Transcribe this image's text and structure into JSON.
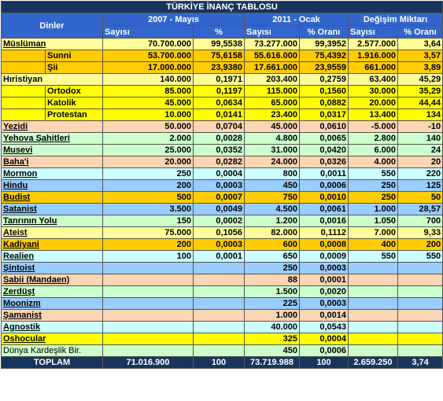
{
  "title": "TÜRKİYE İNANÇ TABLOSU",
  "header": {
    "first": "Dinler",
    "groups": [
      "2007 - Mayıs",
      "2011 - Ocak",
      "Değişim Miktarı"
    ],
    "columns": [
      "Sayısı",
      "%",
      "Sayısı",
      "% Oranı",
      "Sayısı",
      "% Oranı"
    ]
  },
  "rows": [
    {
      "name": "Müslüman",
      "values": [
        "70.700.000",
        "99,5538",
        "73.277.000",
        "99,3952",
        "2.577.000",
        "3,64"
      ],
      "color": "#ffff99",
      "link": true
    },
    {
      "name": "Sunni",
      "values": [
        "53.700.000",
        "75,6158",
        "55.616.000",
        "75,4392",
        "1.916.000",
        "3,57"
      ],
      "color": "#ffcc00",
      "indent": true
    },
    {
      "name": "Şii",
      "values": [
        "17.000.000",
        "23,9380",
        "17.661.000",
        "23,9559",
        "661.000",
        "3,89"
      ],
      "color": "#ffcc00",
      "indent": true
    },
    {
      "name": "Hıristiyan",
      "values": [
        "140.000",
        "0,1971",
        "203.400",
        "0,2759",
        "63.400",
        "45,29"
      ],
      "color": "#ffff99"
    },
    {
      "name": "Ortodox",
      "values": [
        "85.000",
        "0,1197",
        "115.000",
        "0,1560",
        "30.000",
        "35,29"
      ],
      "color": "#ffff00",
      "indent": true
    },
    {
      "name": "Katolik",
      "values": [
        "45.000",
        "0,0634",
        "65.000",
        "0,0882",
        "20.000",
        "44,44"
      ],
      "color": "#ffff00",
      "indent": true
    },
    {
      "name": "Protestan",
      "values": [
        "10.000",
        "0,0141",
        "23.400",
        "0,0317",
        "13.400",
        "134"
      ],
      "color": "#ffff00",
      "indent": true
    },
    {
      "name": "Yezidi",
      "values": [
        "50.000",
        "0,0704",
        "45.000",
        "0,0610",
        "-5.000",
        "-10"
      ],
      "color": "#fcd5b4",
      "link": true
    },
    {
      "name": "Yehova Şahitleri",
      "values": [
        "2.000",
        "0,0028",
        "4.800",
        "0,0065",
        "2.800",
        "140"
      ],
      "color": "#ccffcc",
      "link": true
    },
    {
      "name": "Musevi",
      "values": [
        "25.000",
        "0,0352",
        "31.000",
        "0,0420",
        "6.000",
        "24"
      ],
      "color": "#ccffcc",
      "link": true
    },
    {
      "name": "Baha'i",
      "values": [
        "20.000",
        "0,0282",
        "24.000",
        "0,0326",
        "4.000",
        "20"
      ],
      "color": "#fcd5b4",
      "link": true
    },
    {
      "name": "Mormon",
      "values": [
        "250",
        "0,0004",
        "800",
        "0,0011",
        "550",
        "220"
      ],
      "color": "#ccffff",
      "link": true
    },
    {
      "name": "Hindu",
      "values": [
        "200",
        "0,0003",
        "450",
        "0,0006",
        "250",
        "125"
      ],
      "color": "#99ccff",
      "link": true
    },
    {
      "name": "Budist",
      "values": [
        "500",
        "0,0007",
        "750",
        "0,0010",
        "250",
        "50"
      ],
      "color": "#ffcc00",
      "link": true
    },
    {
      "name": "Satanist",
      "values": [
        "3.500",
        "0,0049",
        "4.500",
        "0,0061",
        "1.000",
        "28,57"
      ],
      "color": "#99ccff",
      "link": true
    },
    {
      "name": "Tanrının Yolu",
      "values": [
        "150",
        "0,0002",
        "1.200",
        "0,0016",
        "1.050",
        "700"
      ],
      "color": "#ccffcc",
      "link": true
    },
    {
      "name": "Ateist",
      "values": [
        "75.000",
        "0,1056",
        "82.000",
        "0,1112",
        "7.000",
        "9,33"
      ],
      "color": "#ffff99",
      "link": true
    },
    {
      "name": "Kadiyani",
      "values": [
        "200",
        "0,0003",
        "600",
        "0,0008",
        "400",
        "200"
      ],
      "color": "#ffcc00",
      "link": true
    },
    {
      "name": "Realien",
      "values": [
        "100",
        "0,0001",
        "650",
        "0,0009",
        "550",
        "550"
      ],
      "color": "#ccffff",
      "link": true
    },
    {
      "name": "Şintoist",
      "values": [
        null,
        null,
        "250",
        "0,0003",
        null,
        null
      ],
      "color": "#99ccff",
      "link": true
    },
    {
      "name": "Sabii (Mandaen)",
      "values": [
        null,
        null,
        "88",
        "0,0001",
        null,
        null
      ],
      "color": "#fcd5b4",
      "link": true
    },
    {
      "name": "Zerdüşt",
      "values": [
        null,
        null,
        "1.500",
        "0,0020",
        null,
        null
      ],
      "color": "#ccffcc",
      "link": true
    },
    {
      "name": "Moonizm",
      "values": [
        null,
        null,
        "225",
        "0,0003",
        null,
        null
      ],
      "color": "#99ccff",
      "link": true
    },
    {
      "name": "Şamanist",
      "values": [
        null,
        null,
        "1.000",
        "0,0014",
        null,
        null
      ],
      "color": "#fcd5b4",
      "link": true
    },
    {
      "name": "Agnostik",
      "values": [
        null,
        null,
        "40.000",
        "0,0543",
        null,
        null
      ],
      "color": "#ccffff",
      "link": true
    },
    {
      "name": "Oshocular",
      "values": [
        null,
        null,
        "325",
        "0,0004",
        null,
        null
      ],
      "color": "#ffff00",
      "link": true
    },
    {
      "name": "Dünya Kardeşlik Bir.",
      "values": [
        null,
        null,
        "450",
        "0,0006",
        null,
        null
      ],
      "color": "#ccffcc",
      "plain": true
    }
  ],
  "total": {
    "name": "TOPLAM",
    "values": [
      "71.016.900",
      "100",
      "73.719.988",
      "100",
      "2.659.250",
      "3,74"
    ]
  }
}
